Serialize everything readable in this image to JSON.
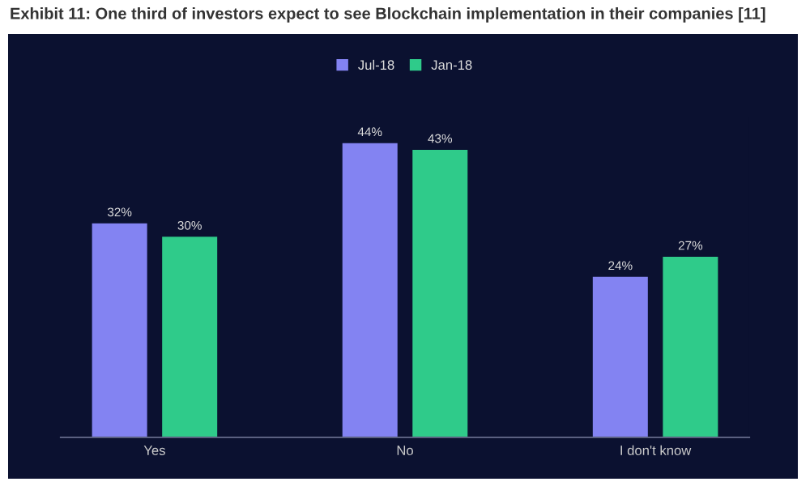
{
  "chart_data": {
    "type": "bar",
    "title": "Exhibit 11: One third of investors expect to see Blockchain implementation in their companies [11]",
    "categories": [
      "Yes",
      "No",
      "I don't know"
    ],
    "series": [
      {
        "name": "Jul-18",
        "color": "#8383f2",
        "values": [
          32,
          44,
          24
        ],
        "value_labels": [
          "32%",
          "44%",
          "24%"
        ]
      },
      {
        "name": "Jan-18",
        "color": "#2fcb8a",
        "values": [
          30,
          43,
          27
        ],
        "value_labels": [
          "30%",
          "43%",
          "27%"
        ]
      }
    ],
    "legend": "top",
    "grid": false
  }
}
